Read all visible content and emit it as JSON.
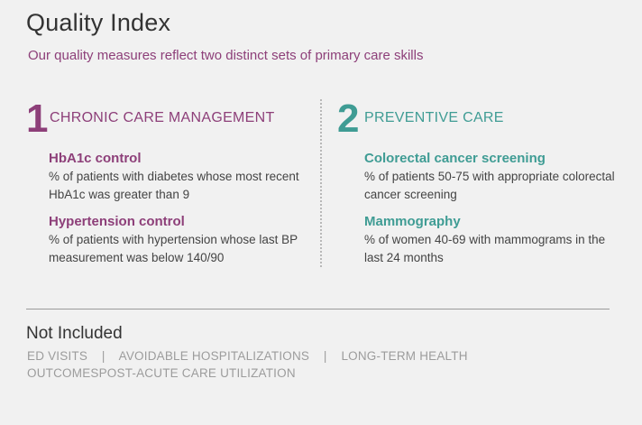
{
  "title": "Quality Index",
  "subtitle": "Our quality measures reflect two distinct sets of primary care skills",
  "colors": {
    "primary_purple": "#8d3f79",
    "primary_teal": "#3f9c94"
  },
  "sections": [
    {
      "number": "1",
      "label": "CHRONIC CARE MANAGEMENT",
      "measures": [
        {
          "title": "HbA1c control",
          "description": "% of patients with diabetes whose most recent HbA1c was greater than 9"
        },
        {
          "title": "Hypertension control",
          "description": "% of patients with hypertension whose last BP measurement was below 140/90"
        }
      ]
    },
    {
      "number": "2",
      "label": "PREVENTIVE CARE",
      "measures": [
        {
          "title": "Colorectal cancer screening",
          "description": "% of patients 50-75 with appropriate colorectal cancer screening"
        },
        {
          "title": "Mammography",
          "description": "% of women 40-69 with mammograms in the last 24 months"
        }
      ]
    }
  ],
  "not_included": {
    "title": "Not Included",
    "text": "ED VISITS    |    AVOIDABLE HOSPITALIZATIONS    |    LONG-TERM HEALTH OUTCOMESPOST-ACUTE CARE UTILIZATION"
  }
}
